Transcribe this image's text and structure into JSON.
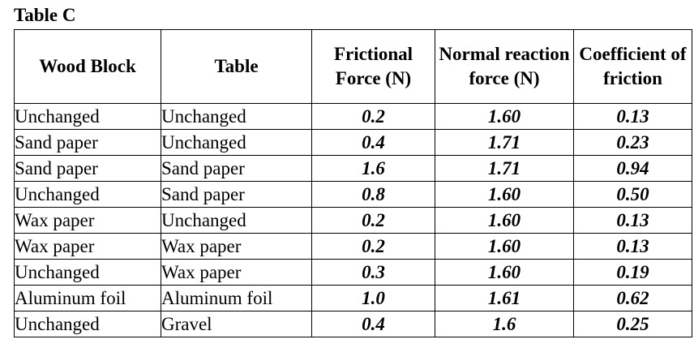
{
  "caption": "Table C",
  "columns": [
    "Wood Block",
    "Table",
    "Frictional Force (N)",
    "Normal reaction force (N)",
    "Coefficient of friction"
  ],
  "rows": [
    {
      "wood_block": "Unchanged",
      "table": "Unchanged",
      "frictional_force": "0.2",
      "normal_force": "1.60",
      "coefficient": "0.13"
    },
    {
      "wood_block": "Sand paper",
      "table": "Unchanged",
      "frictional_force": "0.4",
      "normal_force": "1.71",
      "coefficient": "0.23"
    },
    {
      "wood_block": "Sand paper",
      "table": "Sand paper",
      "frictional_force": "1.6",
      "normal_force": "1.71",
      "coefficient": "0.94"
    },
    {
      "wood_block": "Unchanged",
      "table": "Sand paper",
      "frictional_force": "0.8",
      "normal_force": "1.60",
      "coefficient": "0.50"
    },
    {
      "wood_block": "Wax paper",
      "table": "Unchanged",
      "frictional_force": "0.2",
      "normal_force": "1.60",
      "coefficient": "0.13"
    },
    {
      "wood_block": "Wax paper",
      "table": "Wax paper",
      "frictional_force": "0.2",
      "normal_force": "1.60",
      "coefficient": "0.13"
    },
    {
      "wood_block": "Unchanged",
      "table": "Wax paper",
      "frictional_force": "0.3",
      "normal_force": "1.60",
      "coefficient": "0.19"
    },
    {
      "wood_block": "Aluminum foil",
      "table": "Aluminum foil",
      "frictional_force": "1.0",
      "normal_force": "1.61",
      "coefficient": "0.62"
    },
    {
      "wood_block": "Unchanged",
      "table": "Gravel",
      "frictional_force": "0.4",
      "normal_force": "1.6",
      "coefficient": "0.25"
    }
  ]
}
